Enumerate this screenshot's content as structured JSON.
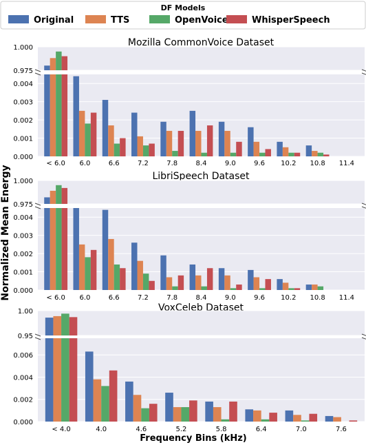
{
  "chart_data": {
    "type": "bar",
    "legend": {
      "title": "DF Models",
      "placement": "top",
      "entries": [
        "Original",
        "TTS",
        "OpenVoice",
        "WhisperSpeech"
      ]
    },
    "colors": {
      "Original": "#4c72b0",
      "TTS": "#dd8452",
      "OpenVoice": "#55a868",
      "WhisperSpeech": "#c44e52"
    },
    "ylabel": "Normalized Mean Energy",
    "xlabel": "Frequency Bins (kHz)",
    "grid": true,
    "axis_break": true,
    "panels": [
      {
        "title": "Mozilla CommonVoice Dataset",
        "categories": [
          "< 6.0",
          "6.0",
          "6.6",
          "7.2",
          "7.8",
          "8.4",
          "9.0",
          "9.6",
          "10.2",
          "10.8",
          "11.4"
        ],
        "upper_ylim": [
          0.975,
          1.0
        ],
        "upper_ticks": [
          "1.000",
          "0.975"
        ],
        "lower_ylim": [
          0,
          0.0045
        ],
        "lower_ticks": [
          "0.000",
          "0.001",
          "0.002",
          "0.003",
          "0.004"
        ],
        "series": [
          {
            "name": "Original",
            "values": [
              0.98,
              0.0044,
              0.0031,
              0.0024,
              0.0019,
              0.0025,
              0.0019,
              0.0016,
              0.0008,
              0.0006,
              0
            ]
          },
          {
            "name": "TTS",
            "values": [
              0.988,
              0.0025,
              0.0017,
              0.0011,
              0.0014,
              0.0014,
              0.0014,
              0.0008,
              0.0005,
              0.0003,
              0
            ]
          },
          {
            "name": "OpenVoice",
            "values": [
              0.995,
              0.0018,
              0.0007,
              0.0006,
              0.0003,
              0.0002,
              0.0002,
              0.0002,
              0.0002,
              0.0002,
              0
            ]
          },
          {
            "name": "WhisperSpeech",
            "values": [
              0.99,
              0.0024,
              0.001,
              0.0007,
              0.0014,
              0.0017,
              0.0008,
              0.0004,
              0.0002,
              0.0001,
              0
            ]
          }
        ]
      },
      {
        "title": "LibriSpeech Dataset",
        "categories": [
          "< 6.0",
          "6.0",
          "6.6",
          "7.2",
          "7.8",
          "8.4",
          "9.0",
          "9.6",
          "10.2",
          "10.8",
          "11.4"
        ],
        "upper_ylim": [
          0.975,
          1.0
        ],
        "upper_ticks": [
          "1.000",
          "0.975"
        ],
        "lower_ylim": [
          0,
          0.0045
        ],
        "lower_ticks": [
          "0.000",
          "0.001",
          "0.002",
          "0.003",
          "0.004"
        ],
        "series": [
          {
            "name": "Original",
            "values": [
              0.982,
              0.0047,
              0.0044,
              0.0026,
              0.0019,
              0.0014,
              0.0012,
              0.0011,
              0.0006,
              0.0003,
              0
            ]
          },
          {
            "name": "TTS",
            "values": [
              0.989,
              0.0025,
              0.0028,
              0.0016,
              0.0007,
              0.0008,
              0.0008,
              0.0007,
              0.0004,
              0.0003,
              0
            ]
          },
          {
            "name": "OpenVoice",
            "values": [
              0.995,
              0.0018,
              0.0014,
              0.0009,
              0.0002,
              0.0002,
              0.0001,
              0.0001,
              0.0001,
              0.0002,
              0
            ]
          },
          {
            "name": "WhisperSpeech",
            "values": [
              0.992,
              0.0022,
              0.0012,
              0.0005,
              0.0008,
              0.0012,
              0.0003,
              0.0006,
              0.0001,
              0,
              0
            ]
          }
        ]
      },
      {
        "title": "VoxCeleb Dataset",
        "categories": [
          "< 4.0",
          "4.0",
          "4.6",
          "5.2",
          "5.8",
          "6.4",
          "7.0",
          "7.6"
        ],
        "upper_ylim": [
          0.95,
          1.0
        ],
        "upper_ticks": [
          "1.00",
          "0.95"
        ],
        "lower_ylim": [
          0,
          0.0075
        ],
        "lower_ticks": [
          "0.000",
          "0.002",
          "0.004",
          "0.006"
        ],
        "series": [
          {
            "name": "Original",
            "values": [
              0.986,
              0.0063,
              0.0036,
              0.0026,
              0.0018,
              0.0011,
              0.001,
              0.0005
            ]
          },
          {
            "name": "TTS",
            "values": [
              0.989,
              0.0038,
              0.0024,
              0.0013,
              0.0013,
              0.001,
              0.0006,
              0.0004
            ]
          },
          {
            "name": "OpenVoice",
            "values": [
              0.994,
              0.0032,
              0.0012,
              0.0013,
              0.0002,
              0.0002,
              0.0001,
              0
            ]
          },
          {
            "name": "WhisperSpeech",
            "values": [
              0.987,
              0.0046,
              0.0016,
              0.0019,
              0.0018,
              0.0008,
              0.0007,
              0.0001
            ]
          }
        ]
      }
    ]
  }
}
